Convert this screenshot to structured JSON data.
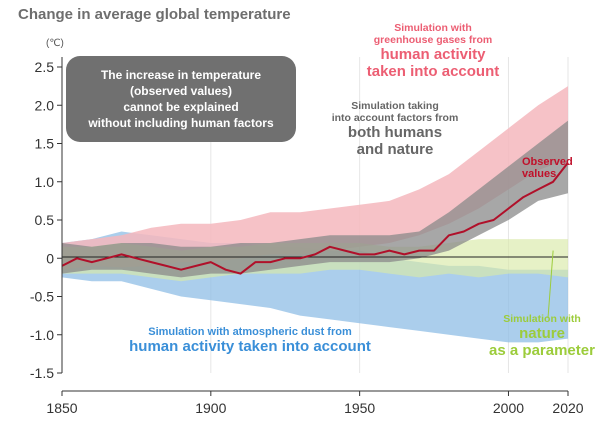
{
  "title": "Change in average global temperature",
  "unit": "(℃)",
  "infobox": {
    "line1": "The increase in temperature",
    "line2": "(observed values)",
    "line3": "cannot be explained",
    "line4": "without including human factors"
  },
  "annotations": {
    "ghg_small1": "Simulation with",
    "ghg_small2": "greenhouse gases from",
    "ghg_big1": "human activity",
    "ghg_big2": "taken into account",
    "both_small1": "Simulation taking",
    "both_small2": "into account factors from",
    "both_big1": "both humans",
    "both_big2": "and nature",
    "obs1": "Observed",
    "obs2": "values",
    "aero_small": "Simulation with atmospheric dust from",
    "aero_big": "human activity taken into account",
    "nat_small": "Simulation with",
    "nat_big1": "nature",
    "nat_big2": "as a parameter"
  },
  "colors": {
    "ghg_band": "#f4b7bd",
    "both_band": "#8a8a8a",
    "natural_band": "#d9e9a8",
    "aerosol_band": "#8fbde6",
    "observed_line": "#b0102a"
  },
  "chart_data": {
    "type": "area",
    "title": "Change in average global temperature",
    "ylabel": "(℃)",
    "xlim": [
      1850,
      2020
    ],
    "ylim": [
      -1.5,
      2.5
    ],
    "x_ticks": [
      1850,
      1900,
      1950,
      2000,
      2020
    ],
    "y_ticks": [
      2.5,
      2.0,
      1.5,
      1.0,
      0.5,
      0,
      -0.5,
      -1.0,
      -1.5
    ],
    "y_tick_labels": [
      "2.5",
      "2.0",
      "1.5",
      "1.0",
      "0.5",
      "0",
      "-0.5",
      "-1.0",
      "-1.5"
    ],
    "bands": [
      {
        "name": "Simulation with greenhouse gases from human activity taken into account",
        "x": [
          1850,
          1860,
          1870,
          1880,
          1890,
          1900,
          1910,
          1920,
          1930,
          1940,
          1950,
          1960,
          1970,
          1980,
          1990,
          2000,
          2010,
          2020
        ],
        "lower": [
          -0.15,
          -0.1,
          -0.12,
          -0.1,
          -0.05,
          -0.05,
          0.0,
          0.05,
          0.05,
          0.1,
          0.15,
          0.2,
          0.3,
          0.45,
          0.65,
          0.9,
          1.15,
          1.3
        ],
        "upper": [
          0.2,
          0.25,
          0.3,
          0.4,
          0.45,
          0.45,
          0.5,
          0.6,
          0.6,
          0.65,
          0.7,
          0.75,
          0.9,
          1.1,
          1.4,
          1.7,
          2.0,
          2.25
        ]
      },
      {
        "name": "Simulation taking into account factors from both humans and nature",
        "x": [
          1850,
          1860,
          1870,
          1880,
          1890,
          1900,
          1910,
          1920,
          1930,
          1940,
          1950,
          1960,
          1970,
          1980,
          1990,
          2000,
          2010,
          2020
        ],
        "lower": [
          -0.2,
          -0.15,
          -0.15,
          -0.2,
          -0.25,
          -0.2,
          -0.2,
          -0.15,
          -0.1,
          -0.05,
          -0.05,
          -0.05,
          0.0,
          0.1,
          0.3,
          0.5,
          0.75,
          0.85
        ],
        "upper": [
          0.2,
          0.15,
          0.2,
          0.2,
          0.15,
          0.15,
          0.2,
          0.2,
          0.25,
          0.3,
          0.3,
          0.3,
          0.35,
          0.6,
          0.9,
          1.2,
          1.5,
          1.8
        ]
      },
      {
        "name": "Simulation with nature as a parameter",
        "x": [
          1850,
          1860,
          1870,
          1880,
          1890,
          1900,
          1910,
          1920,
          1930,
          1940,
          1950,
          1960,
          1970,
          1980,
          1990,
          2000,
          2010,
          2020
        ],
        "lower": [
          -0.2,
          -0.2,
          -0.2,
          -0.25,
          -0.3,
          -0.25,
          -0.2,
          -0.2,
          -0.2,
          -0.15,
          -0.15,
          -0.2,
          -0.25,
          -0.2,
          -0.25,
          -0.2,
          -0.2,
          -0.25
        ],
        "upper": [
          0.15,
          0.15,
          0.2,
          0.15,
          0.1,
          0.15,
          0.15,
          0.2,
          0.2,
          0.2,
          0.2,
          0.15,
          0.15,
          0.2,
          0.25,
          0.25,
          0.25,
          0.25
        ]
      },
      {
        "name": "Simulation with atmospheric dust from human activity taken into account",
        "x": [
          1850,
          1860,
          1870,
          1880,
          1890,
          1900,
          1910,
          1920,
          1930,
          1940,
          1950,
          1960,
          1970,
          1980,
          1990,
          2000,
          2010,
          2020
        ],
        "lower": [
          -0.25,
          -0.3,
          -0.3,
          -0.4,
          -0.5,
          -0.55,
          -0.6,
          -0.65,
          -0.75,
          -0.8,
          -0.85,
          -0.9,
          -0.95,
          -1.0,
          -1.05,
          -1.1,
          -1.1,
          -1.05
        ],
        "upper": [
          0.2,
          0.25,
          0.35,
          0.3,
          0.25,
          0.2,
          0.2,
          0.15,
          0.15,
          0.1,
          0.1,
          0.0,
          -0.05,
          -0.1,
          -0.1,
          -0.15,
          -0.15,
          -0.15
        ]
      }
    ],
    "series": [
      {
        "name": "Observed values",
        "x": [
          1850,
          1855,
          1860,
          1865,
          1870,
          1875,
          1880,
          1885,
          1890,
          1895,
          1900,
          1905,
          1910,
          1915,
          1920,
          1925,
          1930,
          1935,
          1940,
          1945,
          1950,
          1955,
          1960,
          1965,
          1970,
          1975,
          1980,
          1985,
          1990,
          1995,
          2000,
          2005,
          2010,
          2015,
          2020
        ],
        "values": [
          -0.1,
          0.0,
          -0.05,
          0.0,
          0.05,
          0.0,
          -0.05,
          -0.1,
          -0.15,
          -0.1,
          -0.05,
          -0.15,
          -0.2,
          -0.05,
          -0.05,
          0.0,
          0.0,
          0.05,
          0.15,
          0.1,
          0.05,
          0.05,
          0.1,
          0.05,
          0.1,
          0.1,
          0.3,
          0.35,
          0.45,
          0.5,
          0.65,
          0.8,
          0.9,
          1.0,
          1.25
        ]
      }
    ]
  }
}
